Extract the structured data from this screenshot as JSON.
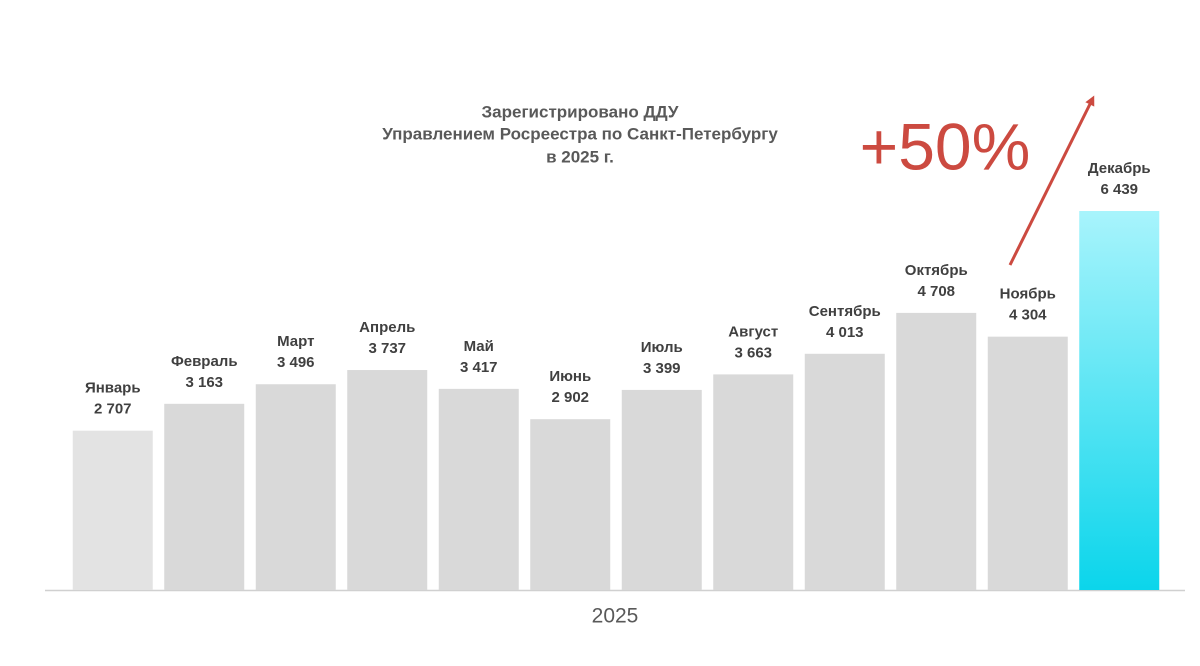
{
  "chart_data": {
    "type": "bar",
    "title": [
      "Зарегистрировано ДДУ",
      "Управлением Росреестра по Санкт-Петербургу",
      "в 2025 г."
    ],
    "x_label": "2025",
    "annotation": "+50%",
    "categories": [
      "Январь",
      "Февраль",
      "Март",
      "Апрель",
      "Май",
      "Июнь",
      "Июль",
      "Август",
      "Сентябрь",
      "Октябрь",
      "Ноябрь",
      "Декабрь"
    ],
    "values": [
      2707,
      3163,
      3496,
      3737,
      3417,
      2902,
      3399,
      3663,
      4013,
      4708,
      4304,
      6439
    ],
    "value_labels": [
      "2 707",
      "3 163",
      "3 496",
      "3 737",
      "3 417",
      "2 902",
      "3 399",
      "3 663",
      "4 013",
      "4 708",
      "4 304",
      "6 439"
    ],
    "colors": [
      "#e3e3e3",
      "#d9d9d9",
      "#d9d9d9",
      "#d9d9d9",
      "#d9d9d9",
      "#d9d9d9",
      "#d9d9d9",
      "#d9d9d9",
      "#d9d9d9",
      "#d9d9d9",
      "#d9d9d9",
      "gradient"
    ],
    "gradient": [
      "#a8f4fc",
      "#0bd5eb"
    ],
    "annotation_color": "#cc4a40"
  }
}
